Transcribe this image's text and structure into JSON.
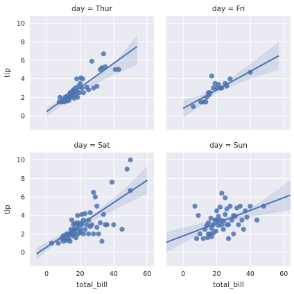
{
  "chart_data": {
    "type": "scatter",
    "kind": "facet-grid regression (lmplot)",
    "x_label": "total_bill",
    "y_label": "tip",
    "xlim": [
      -10,
      64
    ],
    "ylim": [
      -1.5,
      10.8
    ],
    "x_ticks": [
      0,
      20,
      40,
      60
    ],
    "y_ticks": [
      0,
      2,
      4,
      6,
      8,
      10
    ],
    "grid": true,
    "colors": {
      "point": "#4c72b0",
      "line": "#4c72b0",
      "panel": "#eaeaf2",
      "grid": "#ffffff"
    },
    "facets": [
      {
        "title": "day = Thur",
        "points": [
          [
            7.5,
            1.5
          ],
          [
            8,
            2
          ],
          [
            9,
            1.5
          ],
          [
            10,
            1.7
          ],
          [
            10.5,
            1.5
          ],
          [
            11,
            2
          ],
          [
            11.5,
            1.6
          ],
          [
            12,
            2.1
          ],
          [
            12.5,
            1.6
          ],
          [
            13,
            2
          ],
          [
            13,
            2.2
          ],
          [
            13.5,
            1.7
          ],
          [
            14,
            2.5
          ],
          [
            14,
            2
          ],
          [
            14.5,
            2.3
          ],
          [
            15,
            2.6
          ],
          [
            15,
            2.1
          ],
          [
            15.5,
            2.4
          ],
          [
            16,
            2.5
          ],
          [
            16,
            2.8
          ],
          [
            16.5,
            1.9
          ],
          [
            17,
            3
          ],
          [
            17.5,
            2.2
          ],
          [
            18,
            2.6
          ],
          [
            18,
            4
          ],
          [
            18.5,
            2
          ],
          [
            19,
            3.2
          ],
          [
            19.5,
            2.5
          ],
          [
            20,
            3.5
          ],
          [
            20.5,
            4.1
          ],
          [
            21,
            3
          ],
          [
            21.5,
            4
          ],
          [
            22,
            2.5
          ],
          [
            24,
            3.1
          ],
          [
            25,
            2.8
          ],
          [
            27,
            5.9
          ],
          [
            28,
            3
          ],
          [
            30,
            3.2
          ],
          [
            32,
            5
          ],
          [
            33,
            5.2
          ],
          [
            34,
            6.7
          ],
          [
            35,
            5.3
          ],
          [
            41,
            5
          ],
          [
            43,
            5
          ]
        ],
        "regression": {
          "x_range": [
            0,
            54
          ],
          "y_at_start": 0.45,
          "y_at_end": 7.5
        },
        "ci": {
          "x": [
            0,
            10,
            17,
            25,
            40,
            54
          ],
          "lower": [
            -0.1,
            1.3,
            2.2,
            3.05,
            4.4,
            5.5
          ],
          "upper": [
            1.0,
            1.75,
            2.6,
            3.45,
            5.65,
            8.7
          ]
        }
      },
      {
        "title": "day = Fri",
        "points": [
          [
            6,
            1
          ],
          [
            10.5,
            1.5
          ],
          [
            12,
            1.5
          ],
          [
            13.5,
            1.5
          ],
          [
            14,
            2
          ],
          [
            15,
            2.5
          ],
          [
            15.5,
            2.3
          ],
          [
            16,
            2.5
          ],
          [
            17,
            4.3
          ],
          [
            18,
            3
          ],
          [
            19,
            3.5
          ],
          [
            20,
            3
          ],
          [
            21,
            3.4
          ],
          [
            22,
            3
          ],
          [
            23,
            3
          ],
          [
            25,
            3.5
          ],
          [
            26,
            3.2
          ],
          [
            28,
            4
          ],
          [
            40,
            4.7
          ]
        ],
        "regression": {
          "x_range": [
            0,
            57
          ],
          "y_at_start": 0.8,
          "y_at_end": 6.5
        },
        "ci": {
          "x": [
            0,
            10,
            17,
            25,
            40,
            57
          ],
          "lower": [
            -0.2,
            1.0,
            2.15,
            2.9,
            4.0,
            5.0
          ],
          "upper": [
            1.7,
            2.2,
            2.9,
            3.6,
            5.6,
            8.0
          ]
        }
      },
      {
        "title": "day = Sat",
        "points": [
          [
            3,
            1
          ],
          [
            7,
            1
          ],
          [
            9,
            1.5
          ],
          [
            10,
            1.2
          ],
          [
            10,
            1.8
          ],
          [
            11,
            1.5
          ],
          [
            12,
            1.3
          ],
          [
            12,
            2
          ],
          [
            13,
            1.5
          ],
          [
            13,
            1.9
          ],
          [
            14,
            2
          ],
          [
            14,
            1.2
          ],
          [
            14.5,
            2.5
          ],
          [
            15,
            2
          ],
          [
            15,
            3.5
          ],
          [
            15.5,
            1.8
          ],
          [
            16,
            2.3
          ],
          [
            16,
            3
          ],
          [
            16.5,
            2.5
          ],
          [
            17,
            2
          ],
          [
            17,
            3.1
          ],
          [
            17.5,
            1.6
          ],
          [
            18,
            2.5
          ],
          [
            18,
            3.2
          ],
          [
            18.5,
            4
          ],
          [
            19,
            2
          ],
          [
            19,
            3
          ],
          [
            20,
            2.5
          ],
          [
            20,
            3.2
          ],
          [
            20.5,
            2.2
          ],
          [
            21,
            3
          ],
          [
            21,
            4.1
          ],
          [
            22,
            2
          ],
          [
            22,
            3.5
          ],
          [
            23,
            2.5
          ],
          [
            23,
            4.2
          ],
          [
            24,
            3
          ],
          [
            25,
            2
          ],
          [
            25,
            3.5
          ],
          [
            26,
            2.8
          ],
          [
            26,
            4.3
          ],
          [
            27,
            3
          ],
          [
            28,
            6.5
          ],
          [
            28,
            2
          ],
          [
            29,
            6
          ],
          [
            30,
            5
          ],
          [
            30,
            2.7
          ],
          [
            31,
            2
          ],
          [
            32,
            3.2
          ],
          [
            33,
            1.2
          ],
          [
            34,
            4.1
          ],
          [
            35,
            3
          ],
          [
            36,
            3
          ],
          [
            39,
            7.6
          ],
          [
            40,
            3
          ],
          [
            45,
            2.5
          ],
          [
            48,
            9
          ],
          [
            50,
            10
          ],
          [
            50,
            6.7
          ]
        ],
        "regression": {
          "x_range": [
            -6,
            60
          ],
          "y_at_start": -0.15,
          "y_at_end": 7.8
        },
        "ci": {
          "x": [
            -6,
            5,
            18,
            30,
            45,
            60
          ],
          "lower": [
            -0.8,
            0.9,
            2.5,
            3.6,
            5.0,
            6.3
          ],
          "upper": [
            0.5,
            1.6,
            2.95,
            4.4,
            6.6,
            9.3
          ]
        }
      },
      {
        "title": "day = Sun",
        "points": [
          [
            7,
            5
          ],
          [
            8,
            1.5
          ],
          [
            9,
            4
          ],
          [
            10,
            2
          ],
          [
            12,
            1.5
          ],
          [
            13,
            2.5
          ],
          [
            14,
            2.9
          ],
          [
            14.5,
            1.6
          ],
          [
            15,
            3.2
          ],
          [
            15,
            2
          ],
          [
            16,
            2
          ],
          [
            16.5,
            3.7
          ],
          [
            17,
            2.6
          ],
          [
            17,
            1.7
          ],
          [
            18,
            3
          ],
          [
            18,
            2.1
          ],
          [
            19,
            3.5
          ],
          [
            19.5,
            2.3
          ],
          [
            20,
            3.5
          ],
          [
            20,
            4.5
          ],
          [
            21,
            2.9
          ],
          [
            21,
            3.9
          ],
          [
            22,
            3.5
          ],
          [
            22,
            4.9
          ],
          [
            23,
            6.4
          ],
          [
            23,
            3
          ],
          [
            24,
            2.5
          ],
          [
            24,
            3.4
          ],
          [
            25,
            5.9
          ],
          [
            25,
            4.1
          ],
          [
            26,
            3
          ],
          [
            26,
            4.7
          ],
          [
            27,
            1.5
          ],
          [
            27,
            3
          ],
          [
            28,
            5
          ],
          [
            29,
            3.5
          ],
          [
            30,
            4
          ],
          [
            30,
            2
          ],
          [
            31,
            3.9
          ],
          [
            32,
            4.8
          ],
          [
            33,
            3
          ],
          [
            34,
            5
          ],
          [
            35,
            3.5
          ],
          [
            36,
            2.5
          ],
          [
            37,
            4.5
          ],
          [
            38,
            3.8
          ],
          [
            40,
            5
          ],
          [
            44,
            3.5
          ],
          [
            48,
            5
          ]
        ],
        "regression": {
          "x_range": [
            -10,
            64
          ],
          "y_at_start": 1.1,
          "y_at_end": 6.2
        },
        "ci": {
          "x": [
            -10,
            5,
            20,
            30,
            45,
            64
          ],
          "lower": [
            0.0,
            1.5,
            2.95,
            3.45,
            4.0,
            4.6
          ],
          "upper": [
            2.2,
            2.9,
            3.55,
            4.1,
            5.3,
            7.8
          ]
        }
      }
    ]
  }
}
